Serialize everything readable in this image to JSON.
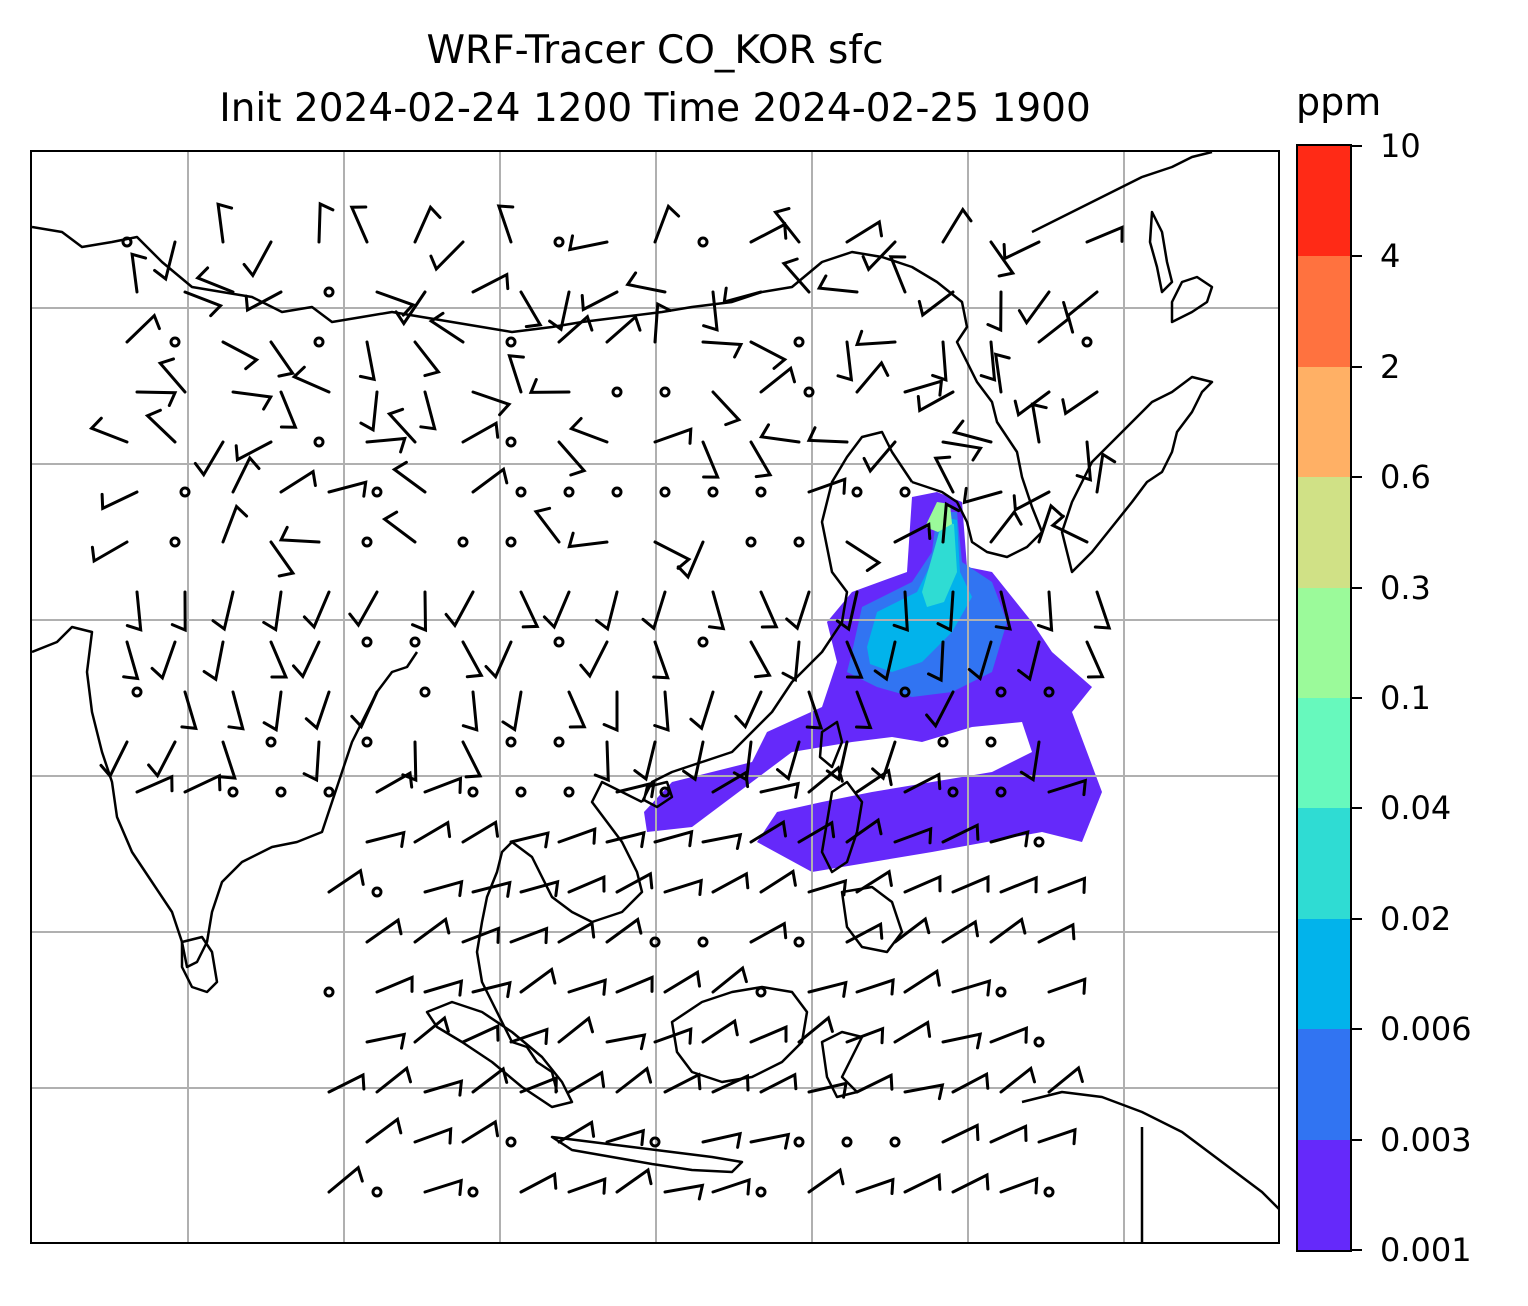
{
  "title": {
    "line1": "WRF-Tracer CO_KOR sfc",
    "line2": "Init 2024-02-24 1200 Time 2024-02-25 1900"
  },
  "colorbar": {
    "unit": "ppm",
    "ticks": [
      "0.001",
      "0.003",
      "0.006",
      "0.02",
      "0.04",
      "0.1",
      "0.3",
      "0.6",
      "2",
      "4",
      "10"
    ],
    "colors": [
      "#6529fa",
      "#3174f2",
      "#02b3eb",
      "#2fdcd3",
      "#67f9bd",
      "#9bfa9a",
      "#d0e186",
      "#ffb065",
      "#ff723f",
      "#ff2a16"
    ]
  },
  "map": {
    "gridlines": true,
    "coastline_color": "#000000",
    "grid_color": "#b0b0b0",
    "plume_colors": {
      "outer": "#6529fa",
      "low": "#3174f2",
      "mid": "#02b3eb",
      "high": "#2fdcd3",
      "peak": "#9bfa9a"
    }
  }
}
